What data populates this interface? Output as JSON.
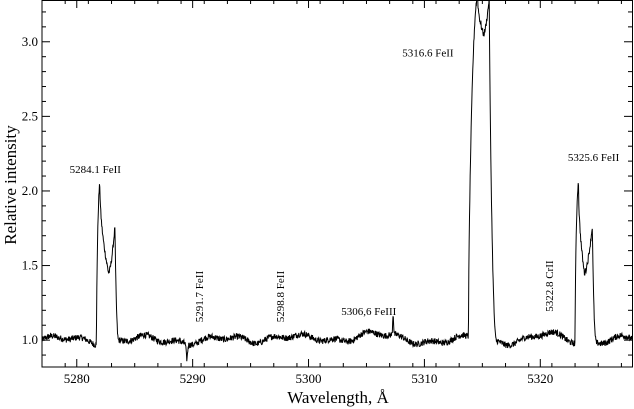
{
  "chart_data": {
    "type": "line",
    "title": "",
    "xlabel": "Wavelength, Å",
    "ylabel": "Relative intensity",
    "xlim": [
      5277,
      5328
    ],
    "ylim": [
      0.82,
      3.28
    ],
    "xticks": [
      5280,
      5290,
      5300,
      5310,
      5320
    ],
    "yticks": [
      1.0,
      1.5,
      2.0,
      2.5,
      3.0
    ],
    "xtick_labels": [
      "5280",
      "5290",
      "5300",
      "5310",
      "5320"
    ],
    "ytick_labels": [
      "1.0",
      "1.5",
      "2.0",
      "2.5",
      "3.0"
    ],
    "grid": false,
    "line_color": "#000000",
    "continuum": 1.0,
    "noise_amplitude": 0.015,
    "features": [
      {
        "type": "double-peak",
        "center": 5282.6,
        "peaks": [
          {
            "x": 5282.0,
            "y": 2.04
          },
          {
            "x": 5283.3,
            "y": 1.77
          }
        ],
        "trough": {
          "x": 5282.75,
          "y": 1.45
        },
        "edges": [
          5281.7,
          5283.6
        ]
      },
      {
        "type": "double-peak",
        "center": 5315.0,
        "peaks": [
          {
            "x": 5314.6,
            "y": 3.3
          },
          {
            "x": 5315.6,
            "y": 3.3
          }
        ],
        "trough": {
          "x": 5315.1,
          "y": 3.05
        },
        "edges": [
          5313.8,
          5316.2
        ]
      },
      {
        "type": "double-peak",
        "center": 5323.8,
        "peaks": [
          {
            "x": 5323.3,
            "y": 2.05
          },
          {
            "x": 5324.5,
            "y": 1.77
          }
        ],
        "trough": {
          "x": 5323.8,
          "y": 1.45
        },
        "edges": [
          5323.0,
          5324.8
        ]
      },
      {
        "type": "spike",
        "x": 5307.3,
        "y": 1.14
      },
      {
        "type": "dip",
        "x": 5289.5,
        "y": 0.9
      }
    ],
    "annotations": [
      {
        "text": "5284.1 FeII",
        "x": 5281.6,
        "y": 2.12,
        "rotate": false
      },
      {
        "text": "5291.7 FeII",
        "x": 5290.9,
        "y": 1.12,
        "rotate": true
      },
      {
        "text": "5298.8 FeII",
        "x": 5297.9,
        "y": 1.12,
        "rotate": true
      },
      {
        "text": "5306,6 FeIII",
        "x": 5305.2,
        "y": 1.17,
        "rotate": false
      },
      {
        "text": "5316.6 FeII",
        "x": 5310.3,
        "y": 2.9,
        "rotate": false
      },
      {
        "text": "5322.8 CrII",
        "x": 5321.1,
        "y": 1.19,
        "rotate": true
      },
      {
        "text": "5325.6 FeII",
        "x": 5324.6,
        "y": 2.2,
        "rotate": false
      }
    ]
  }
}
